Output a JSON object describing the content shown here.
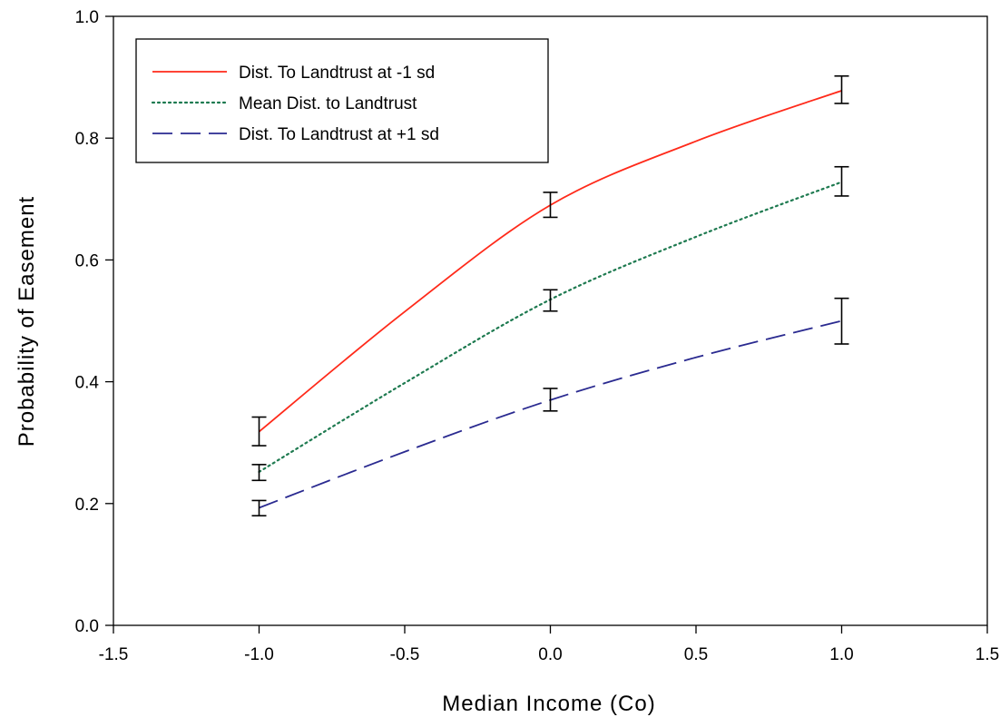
{
  "chart_data": {
    "type": "line",
    "title": "",
    "xlabel": "Median Income (Co)",
    "ylabel": "Probability of Easement",
    "xlim": [
      -1.5,
      1.5
    ],
    "ylim": [
      0.0,
      1.0
    ],
    "x_ticks": [
      -1.5,
      -1.0,
      -0.5,
      0.0,
      0.5,
      1.0,
      1.5
    ],
    "x_tick_labels": [
      "-1.5",
      "-1.0",
      "-0.5",
      "0.0",
      "0.5",
      "1.0",
      "1.5"
    ],
    "y_ticks": [
      0.0,
      0.2,
      0.4,
      0.6,
      0.8,
      1.0
    ],
    "y_tick_labels": [
      "0.0",
      "0.2",
      "0.4",
      "0.6",
      "0.8",
      "1.0"
    ],
    "grid": false,
    "legend_position": "top-left",
    "series": [
      {
        "name": "Dist. To Landtrust at -1 sd",
        "color": "#ff2a1a",
        "line_style": "solid",
        "x": [
          -1.0,
          -0.5,
          0.0,
          0.5,
          1.0
        ],
        "y": [
          0.318,
          0.515,
          0.69,
          0.795,
          0.878
        ],
        "error_x": [
          -1.0,
          0.0,
          1.0
        ],
        "error_low": [
          0.295,
          0.67,
          0.857
        ],
        "error_high": [
          0.342,
          0.711,
          0.902
        ]
      },
      {
        "name": "Mean Dist. to Landtrust",
        "color": "#1e7a50",
        "line_style": "dotted",
        "x": [
          -1.0,
          -0.5,
          0.0,
          0.5,
          1.0
        ],
        "y": [
          0.252,
          0.398,
          0.535,
          0.638,
          0.728
        ],
        "error_x": [
          -1.0,
          0.0,
          1.0
        ],
        "error_low": [
          0.238,
          0.516,
          0.705
        ],
        "error_high": [
          0.264,
          0.551,
          0.753
        ]
      },
      {
        "name": "Dist. To Landtrust at +1 sd",
        "color": "#2a2a90",
        "line_style": "dashed",
        "x": [
          -1.0,
          -0.5,
          0.0,
          0.5,
          1.0
        ],
        "y": [
          0.193,
          0.285,
          0.37,
          0.44,
          0.5
        ],
        "error_x": [
          -1.0,
          0.0,
          1.0
        ],
        "error_low": [
          0.18,
          0.352,
          0.462
        ],
        "error_high": [
          0.205,
          0.389,
          0.537
        ]
      }
    ]
  }
}
